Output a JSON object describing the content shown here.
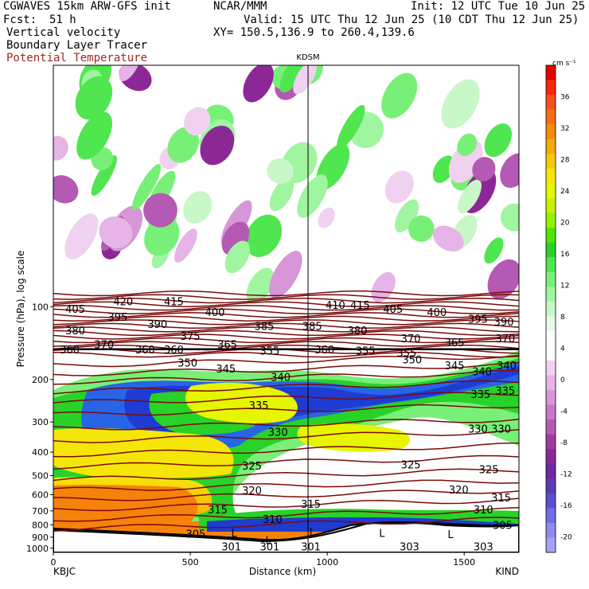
{
  "header": {
    "model": "CGWAVES 15km ARW-GFS init",
    "center": "NCAR/MMM",
    "init": "Init: 12 UTC Tue 10 Jun 25",
    "fcst_label": "Fcst:",
    "fcst_value": "51 h",
    "valid": "Valid: 15 UTC Thu 12 Jun 25 (10 CDT Thu 12 Jun 25)",
    "fields": [
      "Vertical velocity",
      "Boundary Layer Tracer"
    ],
    "field_red": "Potential Temperature",
    "xy": "XY= 150.5,136.9 to 260.4,139.6"
  },
  "chart_data": {
    "type": "heatmap",
    "station_marker": "KDSM",
    "station_marker_x_km": 930,
    "xlabel": "Distance (km)",
    "ylabel": "Pressure (hPa), log scale",
    "xlim": [
      0,
      1700
    ],
    "x_ticks": [
      "0",
      "500",
      "1000",
      "1500"
    ],
    "x_endpoints": [
      "KBJC",
      "KIND"
    ],
    "y_ticks": [
      "100",
      "200",
      "300",
      "400",
      "500",
      "600",
      "700",
      "800",
      "900",
      "1000"
    ],
    "colorbar": {
      "unit": "cm s⁻¹",
      "labels": [
        "36",
        "32",
        "28",
        "24",
        "20",
        "16",
        "12",
        "8",
        "4",
        "0",
        "-4",
        "-8",
        "-12",
        "-16",
        "-20"
      ],
      "colors": [
        "#e60000",
        "#f5280a",
        "#f5501e",
        "#f56e14",
        "#f58c0a",
        "#f5aa0a",
        "#f5c80a",
        "#f5e60a",
        "#e6f500",
        "#c8f000",
        "#96f000",
        "#50e600",
        "#28d228",
        "#50e650",
        "#78f078",
        "#a0f5a0",
        "#c8f7c8",
        "#e6fae6",
        "#ffffff",
        "#ffffff",
        "#f0d2f0",
        "#e6b4e6",
        "#d796d7",
        "#c878c8",
        "#b45ab4",
        "#a03ca0",
        "#8c2896",
        "#6e28a0",
        "#5a3cb4",
        "#5a50d2",
        "#6e6ee6",
        "#8c8cf0",
        "#a5a0f5"
      ]
    },
    "theta_labels": [
      {
        "p": 95,
        "x_km": 255,
        "text": "420"
      },
      {
        "p": 95,
        "x_km": 440,
        "text": "415"
      },
      {
        "p": 98,
        "x_km": 1030,
        "text": "410"
      },
      {
        "p": 98,
        "x_km": 1120,
        "text": "415"
      },
      {
        "p": 102,
        "x_km": 80,
        "text": "405"
      },
      {
        "p": 105,
        "x_km": 590,
        "text": "400"
      },
      {
        "p": 102,
        "x_km": 1240,
        "text": "405"
      },
      {
        "p": 105,
        "x_km": 1400,
        "text": "400"
      },
      {
        "p": 110,
        "x_km": 235,
        "text": "395"
      },
      {
        "p": 118,
        "x_km": 380,
        "text": "390"
      },
      {
        "p": 115,
        "x_km": 1645,
        "text": "390"
      },
      {
        "p": 112,
        "x_km": 1550,
        "text": "395"
      },
      {
        "p": 120,
        "x_km": 770,
        "text": "385"
      },
      {
        "p": 120,
        "x_km": 945,
        "text": "385"
      },
      {
        "p": 125,
        "x_km": 80,
        "text": "380"
      },
      {
        "p": 125,
        "x_km": 1110,
        "text": "380"
      },
      {
        "p": 132,
        "x_km": 500,
        "text": "375"
      },
      {
        "p": 135,
        "x_km": 1305,
        "text": "370"
      },
      {
        "p": 135,
        "x_km": 1650,
        "text": "370"
      },
      {
        "p": 143,
        "x_km": 185,
        "text": "370"
      },
      {
        "p": 143,
        "x_km": 635,
        "text": "365"
      },
      {
        "p": 140,
        "x_km": 1465,
        "text": "365"
      },
      {
        "p": 150,
        "x_km": 335,
        "text": "360"
      },
      {
        "p": 150,
        "x_km": 440,
        "text": "360"
      },
      {
        "p": 150,
        "x_km": 990,
        "text": "360"
      },
      {
        "p": 152,
        "x_km": 790,
        "text": "355"
      },
      {
        "p": 152,
        "x_km": 1140,
        "text": "355"
      },
      {
        "p": 155,
        "x_km": 1290,
        "text": "355"
      },
      {
        "p": 150,
        "x_km": 60,
        "text": "360"
      },
      {
        "p": 170,
        "x_km": 490,
        "text": "350"
      },
      {
        "p": 165,
        "x_km": 1310,
        "text": "350"
      },
      {
        "p": 180,
        "x_km": 630,
        "text": "345"
      },
      {
        "p": 175,
        "x_km": 1465,
        "text": "345"
      },
      {
        "p": 195,
        "x_km": 830,
        "text": "340"
      },
      {
        "p": 185,
        "x_km": 1565,
        "text": "340"
      },
      {
        "p": 175,
        "x_km": 1655,
        "text": "340"
      },
      {
        "p": 255,
        "x_km": 750,
        "text": "335"
      },
      {
        "p": 230,
        "x_km": 1560,
        "text": "335"
      },
      {
        "p": 222,
        "x_km": 1650,
        "text": "335"
      },
      {
        "p": 330,
        "x_km": 820,
        "text": "330"
      },
      {
        "p": 320,
        "x_km": 1550,
        "text": "330"
      },
      {
        "p": 320,
        "x_km": 1635,
        "text": "330"
      },
      {
        "p": 455,
        "x_km": 725,
        "text": "325"
      },
      {
        "p": 450,
        "x_km": 1305,
        "text": "325"
      },
      {
        "p": 470,
        "x_km": 1590,
        "text": "325"
      },
      {
        "p": 575,
        "x_km": 725,
        "text": "320"
      },
      {
        "p": 570,
        "x_km": 1480,
        "text": "320"
      },
      {
        "p": 615,
        "x_km": 1635,
        "text": "315"
      },
      {
        "p": 655,
        "x_km": 940,
        "text": "315"
      },
      {
        "p": 690,
        "x_km": 600,
        "text": "315"
      },
      {
        "p": 690,
        "x_km": 1570,
        "text": "310"
      },
      {
        "p": 755,
        "x_km": 800,
        "text": "310"
      },
      {
        "p": 800,
        "x_km": 1640,
        "text": "305"
      },
      {
        "p": 870,
        "x_km": 520,
        "text": "305"
      }
    ],
    "tracer_markers": [
      {
        "text": "L",
        "x_km": 660,
        "p": 870
      },
      {
        "text": "L",
        "x_km": 785,
        "p": 930
      },
      {
        "text": "L",
        "x_km": 945,
        "p": 860
      },
      {
        "text": "L",
        "x_km": 1200,
        "p": 870
      },
      {
        "text": "L",
        "x_km": 1450,
        "p": 880
      },
      {
        "text": "301",
        "x_km": 650,
        "p": 990
      },
      {
        "text": "301",
        "x_km": 790,
        "p": 990
      },
      {
        "text": "301",
        "x_km": 940,
        "p": 990
      },
      {
        "text": "303",
        "x_km": 1300,
        "p": 990
      },
      {
        "text": "303",
        "x_km": 1570,
        "p": 990
      }
    ]
  }
}
